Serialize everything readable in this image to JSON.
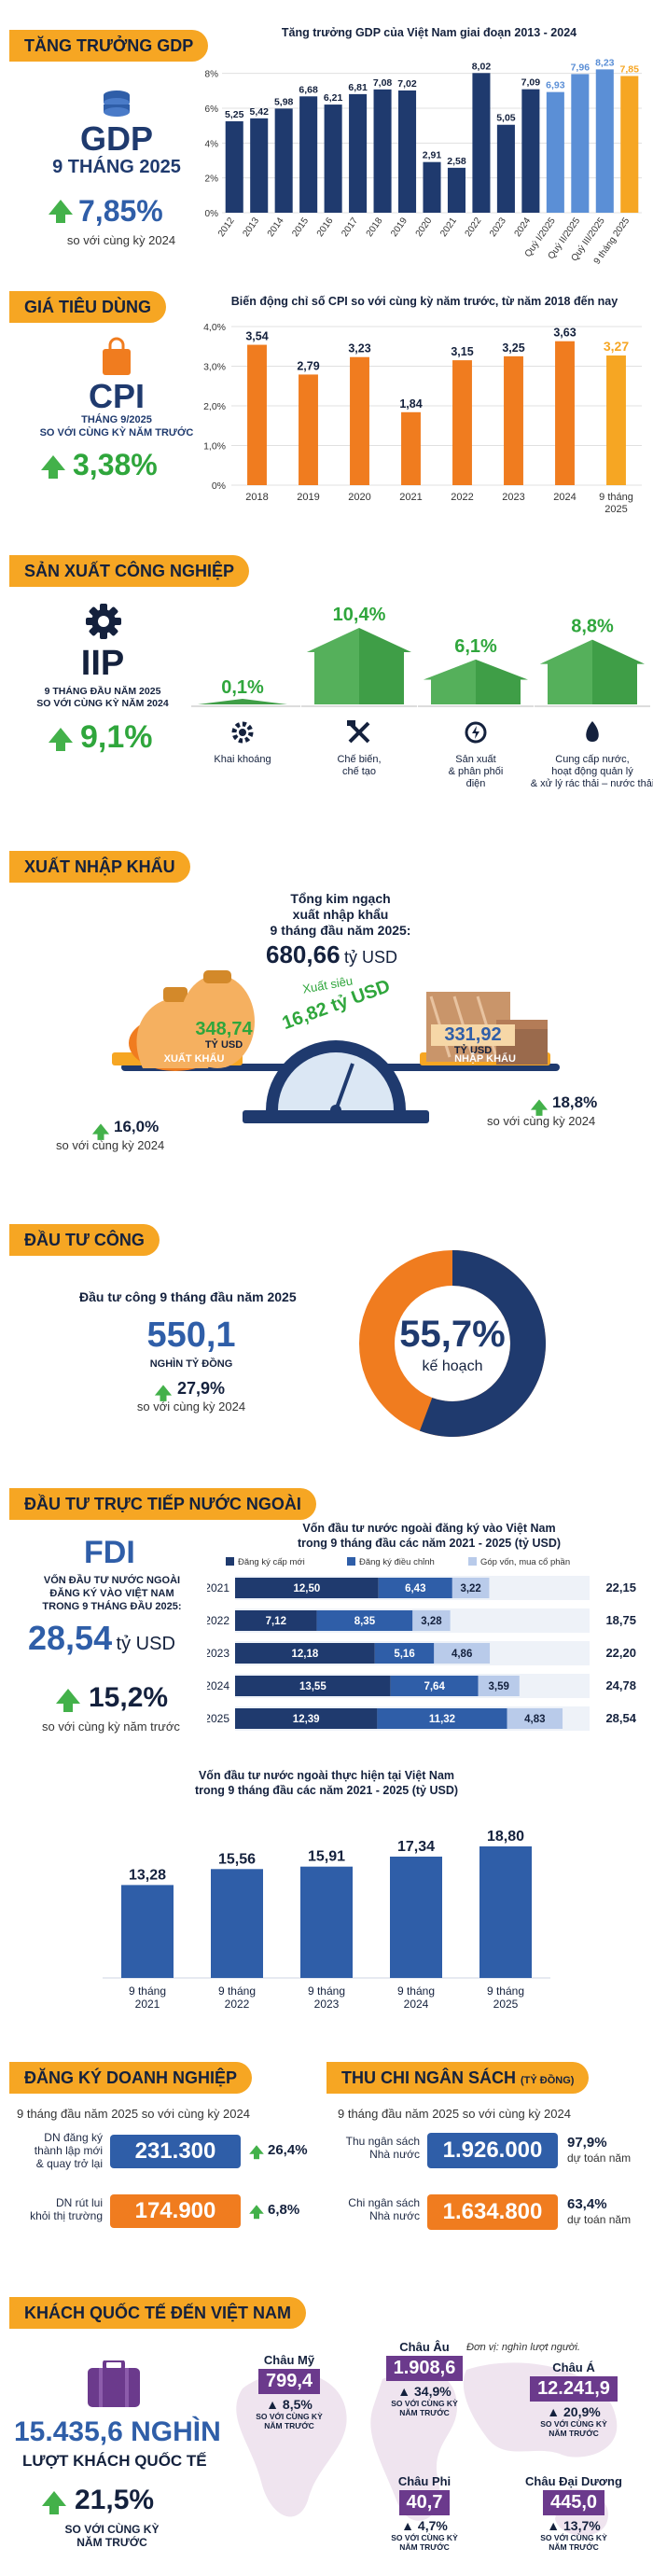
{
  "gdp": {
    "section_title": "TĂNG TRƯỞNG GDP",
    "label": "GDP",
    "period": "9 THÁNG 2025",
    "growth": "7,85%",
    "compare": "so với cùng kỳ 2024"
  },
  "cpi": {
    "section_title": "GIÁ TIÊU DÙNG",
    "label": "CPI",
    "period": "THÁNG 9/2025",
    "compare": "SO VỚI CÙNG KỲ NĂM TRƯỚC",
    "growth": "3,38%"
  },
  "iip": {
    "section_title": "SẢN XUẤT CÔNG NGHIỆP",
    "label": "IIP",
    "period": "9 THÁNG ĐẦU NĂM 2025",
    "compare": "SO VỚI CÙNG KỲ NĂM 2024",
    "growth": "9,1%",
    "sectors": [
      {
        "value": "0,1%",
        "label": "Khai khoáng",
        "v": 0.1,
        "icon": "gear-icon"
      },
      {
        "value": "10,4%",
        "label": "Chế biến,\nchế tạo",
        "v": 10.4,
        "icon": "tools-icon"
      },
      {
        "value": "6,1%",
        "label": "Sản xuất\n& phân phối\nđiện",
        "v": 6.1,
        "icon": "power-icon"
      },
      {
        "value": "8,8%",
        "label": "Cung cấp nước,\nhoạt động quản lý\n& xử lý rác thải – nước thải",
        "v": 8.8,
        "icon": "water-drop-icon"
      }
    ]
  },
  "trade": {
    "section_title": "XUẤT NHẬP KHẨU",
    "total_title": "Tổng kim ngạch\nxuất nhập khẩu\n9 tháng đầu năm 2025:",
    "total_value": "680,66",
    "total_unit": "tỷ USD",
    "export_value": "348,74",
    "export_unit": "TỶ USD",
    "export_label": "XUẤT KHẨU",
    "import_value": "331,92",
    "import_unit": "TỶ USD",
    "import_label": "NHẬP KHẨU",
    "surplus_label": "Xuất siêu",
    "surplus_value": "16,82 tỷ USD",
    "export_growth": "16,0%",
    "export_compare": "so với cùng kỳ 2024",
    "import_growth": "18,8%",
    "import_compare": "so với cùng kỳ 2024"
  },
  "public_invest": {
    "section_title": "ĐẦU TƯ CÔNG",
    "title": "Đầu tư công 9 tháng đầu năm 2025",
    "value": "550,1",
    "unit": "NGHÌN TỶ ĐỒNG",
    "growth": "27,9%",
    "compare": "so với cùng kỳ 2024",
    "donut_value": "55,7%",
    "donut_label": "kế hoạch",
    "pct": 55.7
  },
  "fdi": {
    "section_title": "ĐẦU TƯ TRỰC TIẾP NƯỚC NGOÀI",
    "label": "FDI",
    "desc": "VỐN ĐẦU TƯ NƯỚC NGOÀI\nĐĂNG KÝ VÀO VIỆT NAM\nTRONG 9 THÁNG ĐẦU 2025:",
    "value": "28,54",
    "unit": "tỷ USD",
    "growth": "15,2%",
    "compare": "so với cùng kỳ năm trước"
  },
  "foodfood": {
    "section_title": "ĐĂNG KÝ DOANH NGHIỆP",
    "subtitle": "9 tháng đầu năm 2025 so với cùng kỳ 2024",
    "items": [
      {
        "label": "DN đăng ký\nthành lập mới\n& quay trở lại",
        "value": "231.300",
        "growth": "26,4%"
      },
      {
        "label": "DN rút lui\nkhỏi thị trường",
        "value": "174.900",
        "growth": "6,8%"
      }
    ]
  },
  "budget": {
    "section_title": "THU CHI NGÂN SÁCH",
    "section_unit": "(TỶ ĐỒNG)",
    "subtitle": "9 tháng đầu năm 2025 so với cùng kỳ 2024",
    "items": [
      {
        "label": "Thu ngân sách\nNhà nước",
        "value": "1.926.000",
        "pct": "97,9%",
        "note": "dự toán năm"
      },
      {
        "label": "Chi ngân sách\nNhà nước",
        "value": "1.634.800",
        "pct": "63,4%",
        "note": "dự toán năm"
      }
    ]
  },
  "tourism": {
    "section_title": "KHÁCH QUỐC TẾ ĐẾN VIỆT NAM",
    "unit_note": "Đơn vị: nghìn lượt người.",
    "total_value": "15.435,6 NGHÌN",
    "total_label": "LƯỢT KHÁCH QUỐC TẾ",
    "growth": "21,5%",
    "compare": "SO VỚI CÙNG KỲ\nNĂM TRƯỚC",
    "regions": [
      {
        "name": "Châu Mỹ",
        "value": "799,4",
        "growth": "8,5%",
        "compare": "SO VỚI CÙNG KỲ\nNĂM TRƯỚC"
      },
      {
        "name": "Châu Âu",
        "value": "1.908,6",
        "growth": "34,9%",
        "compare": "SO VỚI CÙNG KỲ\nNĂM TRƯỚC"
      },
      {
        "name": "Châu Á",
        "value": "12.241,9",
        "growth": "20,9%",
        "compare": "SO VỚI CÙNG KỲ\nNĂM TRƯỚC"
      },
      {
        "name": "Châu Phi",
        "value": "40,7",
        "growth": "4,7%",
        "compare": "SO VỚI CÙNG KỲ\nNĂM TRƯỚC"
      },
      {
        "name": "Châu Đại Dương",
        "value": "445,0",
        "growth": "13,7%",
        "compare": "SO VỚI CÙNG KỲ\nNĂM TRƯỚC"
      }
    ]
  },
  "colors": {
    "navy": "#1f3a6e",
    "blue": "#2f5ea8",
    "light_blue": "#5b8fd6",
    "orange": "#f07c1f",
    "amber": "#f6a623",
    "green": "#43b14a",
    "purple": "#6b3a8c"
  },
  "chart_data": [
    {
      "id": "gdp",
      "type": "bar",
      "title": "Tăng trưởng GDP của Việt Nam giai đoạn 2013 - 2024",
      "categories": [
        "2012",
        "2013",
        "2014",
        "2015",
        "2016",
        "2017",
        "2018",
        "2019",
        "2020",
        "2021",
        "2022",
        "2023",
        "2024",
        "Quý I/2025",
        "Quý II/2025",
        "Quý III/2025",
        "9 tháng 2025"
      ],
      "values": [
        5.25,
        5.42,
        5.98,
        6.68,
        6.21,
        6.81,
        7.08,
        7.02,
        2.91,
        2.58,
        8.02,
        5.05,
        7.09,
        6.93,
        7.96,
        8.23,
        7.85
      ],
      "value_labels": [
        "5,25",
        "5,42",
        "5,98",
        "6,68",
        "6,21",
        "6,81",
        "7,08",
        "7,02",
        "2,91",
        "2,58",
        "8,02",
        "5,05",
        "7,09",
        "6,93",
        "7,96",
        "8,23",
        "7,85"
      ],
      "y_ticks": [
        "0%",
        "2%",
        "4%",
        "6%",
        "8%"
      ],
      "ylim": [
        0,
        9
      ]
    },
    {
      "id": "cpi",
      "type": "bar",
      "title": "Biến động chỉ số CPI so với cùng kỳ năm trước, từ năm 2018 đến nay",
      "categories": [
        "2018",
        "2019",
        "2020",
        "2021",
        "2022",
        "2023",
        "2024",
        "9 tháng\n2025"
      ],
      "values": [
        3.54,
        2.79,
        3.23,
        1.84,
        3.15,
        3.25,
        3.63,
        3.27
      ],
      "value_labels": [
        "3,54",
        "2,79",
        "3,23",
        "1,84",
        "3,15",
        "3,25",
        "3,63",
        "3,27"
      ],
      "y_ticks": [
        "0%",
        "1,0%",
        "2,0%",
        "3,0%",
        "4,0%"
      ],
      "ylim": [
        0,
        4
      ]
    },
    {
      "id": "fdi_registered",
      "type": "bar",
      "stacked": true,
      "orientation": "horizontal",
      "title": "Vốn đầu tư nước ngoài đăng ký vào Việt Nam\ntrong 9 tháng đầu các năm 2021 - 2025 (tỷ USD)",
      "legend": [
        "Đăng ký cấp mới",
        "Đăng ký điều chỉnh",
        "Góp vốn, mua cổ phần"
      ],
      "categories": [
        "2021",
        "2022",
        "2023",
        "2024",
        "2025"
      ],
      "series": [
        {
          "name": "Đăng ký cấp mới",
          "values": [
            12.5,
            7.12,
            12.18,
            13.55,
            12.39
          ],
          "labels": [
            "12,50",
            "7,12",
            "12,18",
            "13,55",
            "12,39"
          ]
        },
        {
          "name": "Đăng ký điều chỉnh",
          "values": [
            6.43,
            8.35,
            5.16,
            7.64,
            11.32
          ],
          "labels": [
            "6,43",
            "8,35",
            "5,16",
            "7,64",
            "11,32"
          ]
        },
        {
          "name": "Góp vốn, mua cổ phần",
          "values": [
            3.22,
            3.28,
            4.86,
            3.59,
            4.83
          ],
          "labels": [
            "3,22",
            "3,28",
            "4,86",
            "3,59",
            "4,83"
          ]
        }
      ],
      "totals": [
        "22,15",
        "18,75",
        "22,20",
        "24,78",
        "28,54"
      ]
    },
    {
      "id": "fdi_realized",
      "type": "bar",
      "title": "Vốn đầu tư nước ngoài thực hiện tại Việt Nam\ntrong 9 tháng đầu các năm 2021 - 2025 (tỷ USD)",
      "categories": [
        "9 tháng\n2021",
        "9 tháng\n2022",
        "9 tháng\n2023",
        "9 tháng\n2024",
        "9 tháng\n2025"
      ],
      "values": [
        13.28,
        15.56,
        15.91,
        17.34,
        18.8
      ],
      "value_labels": [
        "13,28",
        "15,56",
        "15,91",
        "17,34",
        "18,80"
      ]
    }
  ]
}
